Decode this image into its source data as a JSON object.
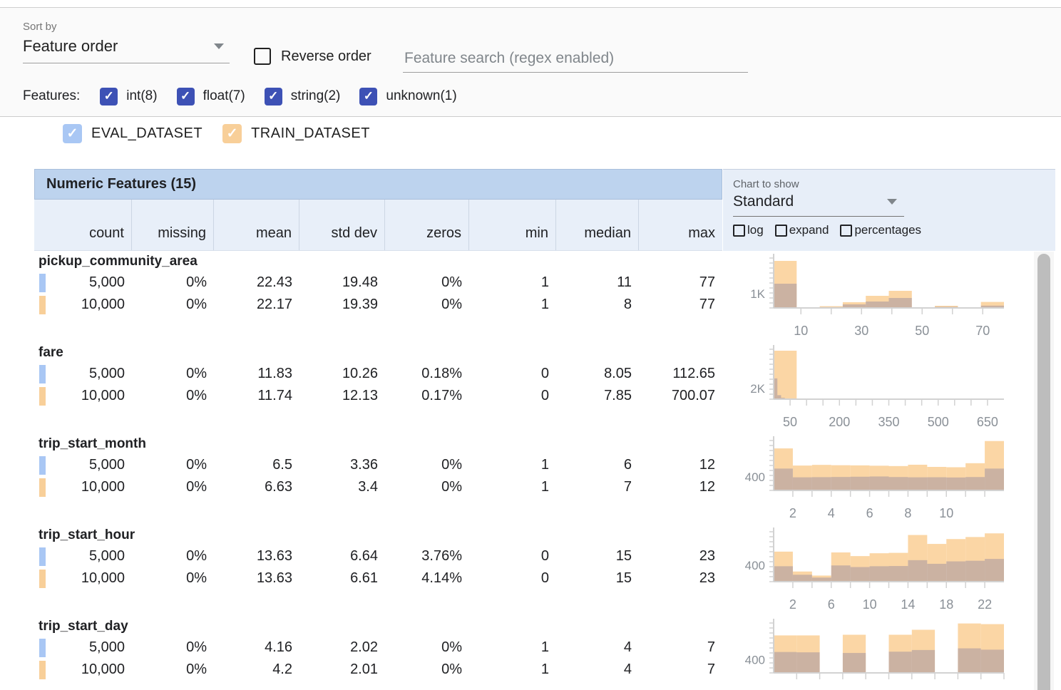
{
  "toolbar": {
    "sort_by_label": "Sort by",
    "sort_by_value": "Feature order",
    "reverse_order_label": "Reverse order",
    "search_placeholder": "Feature search (regex enabled)"
  },
  "features_filter": {
    "label": "Features:",
    "items": [
      {
        "label": "int(8)",
        "checked": true
      },
      {
        "label": "float(7)",
        "checked": true
      },
      {
        "label": "string(2)",
        "checked": true
      },
      {
        "label": "unknown(1)",
        "checked": true
      }
    ]
  },
  "datasets": [
    {
      "name": "EVAL_DATASET",
      "checked": true,
      "color": "#a9c7f4"
    },
    {
      "name": "TRAIN_DATASET",
      "checked": true,
      "color": "#f8cf99"
    }
  ],
  "table": {
    "title": "Numeric Features (15)",
    "columns": [
      "count",
      "missing",
      "mean",
      "std dev",
      "zeros",
      "min",
      "median",
      "max"
    ]
  },
  "chart_panel": {
    "label": "Chart to show",
    "value": "Standard",
    "options": [
      {
        "label": "log",
        "checked": false
      },
      {
        "label": "expand",
        "checked": false
      },
      {
        "label": "percentages",
        "checked": false
      }
    ]
  },
  "features": [
    {
      "name": "pickup_community_area",
      "rows": [
        {
          "dataset": "EVAL_DATASET",
          "values": [
            "5,000",
            "0%",
            "22.43",
            "19.48",
            "0%",
            "1",
            "11",
            "77"
          ]
        },
        {
          "dataset": "TRAIN_DATASET",
          "values": [
            "10,000",
            "0%",
            "22.17",
            "19.39",
            "0%",
            "1",
            "8",
            "77"
          ]
        }
      ]
    },
    {
      "name": "fare",
      "rows": [
        {
          "dataset": "EVAL_DATASET",
          "values": [
            "5,000",
            "0%",
            "11.83",
            "10.26",
            "0.18%",
            "0",
            "8.05",
            "112.65"
          ]
        },
        {
          "dataset": "TRAIN_DATASET",
          "values": [
            "10,000",
            "0%",
            "11.74",
            "12.13",
            "0.17%",
            "0",
            "7.85",
            "700.07"
          ]
        }
      ]
    },
    {
      "name": "trip_start_month",
      "rows": [
        {
          "dataset": "EVAL_DATASET",
          "values": [
            "5,000",
            "0%",
            "6.5",
            "3.36",
            "0%",
            "1",
            "6",
            "12"
          ]
        },
        {
          "dataset": "TRAIN_DATASET",
          "values": [
            "10,000",
            "0%",
            "6.63",
            "3.4",
            "0%",
            "1",
            "7",
            "12"
          ]
        }
      ]
    },
    {
      "name": "trip_start_hour",
      "rows": [
        {
          "dataset": "EVAL_DATASET",
          "values": [
            "5,000",
            "0%",
            "13.63",
            "6.64",
            "3.76%",
            "0",
            "15",
            "23"
          ]
        },
        {
          "dataset": "TRAIN_DATASET",
          "values": [
            "10,000",
            "0%",
            "13.63",
            "6.61",
            "4.14%",
            "0",
            "15",
            "23"
          ]
        }
      ]
    },
    {
      "name": "trip_start_day",
      "rows": [
        {
          "dataset": "EVAL_DATASET",
          "values": [
            "5,000",
            "0%",
            "4.16",
            "2.02",
            "0%",
            "1",
            "4",
            "7"
          ]
        },
        {
          "dataset": "TRAIN_DATASET",
          "values": [
            "10,000",
            "0%",
            "4.2",
            "2.01",
            "0%",
            "1",
            "4",
            "7"
          ]
        }
      ]
    }
  ],
  "chart_data": [
    {
      "type": "bar",
      "feature": "pickup_community_area",
      "ylabel": "1K",
      "ylabel_value": 1000,
      "ymax": 3700,
      "xmin": 1,
      "xmax": 77,
      "xticks_labeled": [
        10,
        30,
        50,
        70
      ],
      "xticks_minor": [
        10,
        20,
        30,
        40,
        50,
        60,
        70
      ],
      "series": [
        {
          "name": "TRAIN_DATASET",
          "start": 1,
          "bin_width": 7.6,
          "values": [
            3300,
            30,
            120,
            400,
            850,
            1200,
            20,
            150,
            20,
            420
          ]
        },
        {
          "name": "EVAL_DATASET",
          "start": 1,
          "bin_width": 7.6,
          "values": [
            1700,
            20,
            60,
            250,
            450,
            700,
            10,
            80,
            10,
            160
          ]
        }
      ]
    },
    {
      "type": "bar",
      "feature": "fare",
      "ylabel": "2K",
      "ylabel_value": 2000,
      "ymax": 9900,
      "xmin": 0,
      "xmax": 700,
      "xticks_labeled": [
        50,
        200,
        350,
        500,
        650
      ],
      "xticks_minor": [
        50,
        100,
        150,
        200,
        250,
        300,
        350,
        400,
        450,
        500,
        550,
        600,
        650
      ],
      "series": [
        {
          "name": "TRAIN_DATASET",
          "start": 0,
          "bin_width": 70,
          "values": [
            9100,
            90,
            40,
            20,
            12,
            8,
            6,
            4,
            3,
            10
          ]
        },
        {
          "name": "EVAL_DATASET",
          "start": 0,
          "bin_width": 11.3,
          "values": [
            3900,
            750,
            260,
            110,
            60,
            35,
            20,
            12,
            8,
            6
          ]
        }
      ]
    },
    {
      "type": "bar",
      "feature": "trip_start_month",
      "ylabel": "400",
      "ylabel_value": 400,
      "ymax": 1570,
      "xmin": 1,
      "xmax": 13,
      "xticks_labeled": [
        2,
        4,
        6,
        8,
        10
      ],
      "xticks_minor": [
        2,
        3,
        4,
        5,
        6,
        7,
        8,
        9,
        10,
        11,
        12
      ],
      "series": [
        {
          "name": "TRAIN_DATASET",
          "start": 1,
          "bin_width": 1,
          "values": [
            1250,
            740,
            760,
            750,
            745,
            735,
            725,
            765,
            700,
            690,
            810,
            1470
          ]
        },
        {
          "name": "EVAL_DATASET",
          "start": 1,
          "bin_width": 1,
          "values": [
            650,
            390,
            395,
            400,
            408,
            415,
            398,
            390,
            392,
            385,
            398,
            650
          ]
        }
      ]
    },
    {
      "type": "bar",
      "feature": "trip_start_hour",
      "ylabel": "400",
      "ylabel_value": 400,
      "ymax": 1300,
      "xmin": 0,
      "xmax": 24,
      "xticks_labeled": [
        2,
        6,
        10,
        14,
        18,
        22
      ],
      "xticks_minor": [
        2,
        4,
        6,
        8,
        10,
        12,
        14,
        16,
        18,
        20,
        22
      ],
      "series": [
        {
          "name": "TRAIN_DATASET",
          "start": 0,
          "bin_width": 2,
          "values": [
            740,
            250,
            150,
            720,
            630,
            700,
            710,
            1150,
            930,
            1050,
            1100,
            1190
          ]
        },
        {
          "name": "EVAL_DATASET",
          "start": 0,
          "bin_width": 2,
          "values": [
            380,
            170,
            100,
            400,
            360,
            380,
            385,
            530,
            440,
            500,
            515,
            560
          ]
        }
      ]
    },
    {
      "type": "bar",
      "feature": "trip_start_day",
      "ylabel": "400",
      "ylabel_value": 400,
      "ymax": 1590,
      "xmin": 1,
      "xmax": 7,
      "xticks_labeled": [],
      "xticks_minor": [
        1.6,
        2.2,
        2.8,
        3.4,
        4,
        4.6,
        5.2,
        5.8,
        6.4,
        7
      ],
      "series": [
        {
          "name": "TRAIN_DATASET",
          "start": 1,
          "bin_width": 0.6,
          "values": [
            1130,
            1130,
            0,
            1150,
            0,
            1150,
            1300,
            0,
            1490,
            1470
          ]
        },
        {
          "name": "EVAL_DATASET",
          "start": 1,
          "bin_width": 0.6,
          "values": [
            630,
            620,
            0,
            600,
            0,
            640,
            690,
            0,
            740,
            700
          ]
        }
      ]
    }
  ],
  "colors": {
    "accent_indigo": "#3d51b5",
    "eval_swatch": "#a9c7f4",
    "train_swatch": "#f8cf99",
    "train_bar": "#fbd6a5",
    "eval_overlay": "rgba(144,136,160,0.45)",
    "header_band": "#bdd3ee",
    "header_row": "#e8eff9",
    "panel_bg": "#e7eef8",
    "axis": "#d2d2d2",
    "axis_text": "#8a9097"
  }
}
